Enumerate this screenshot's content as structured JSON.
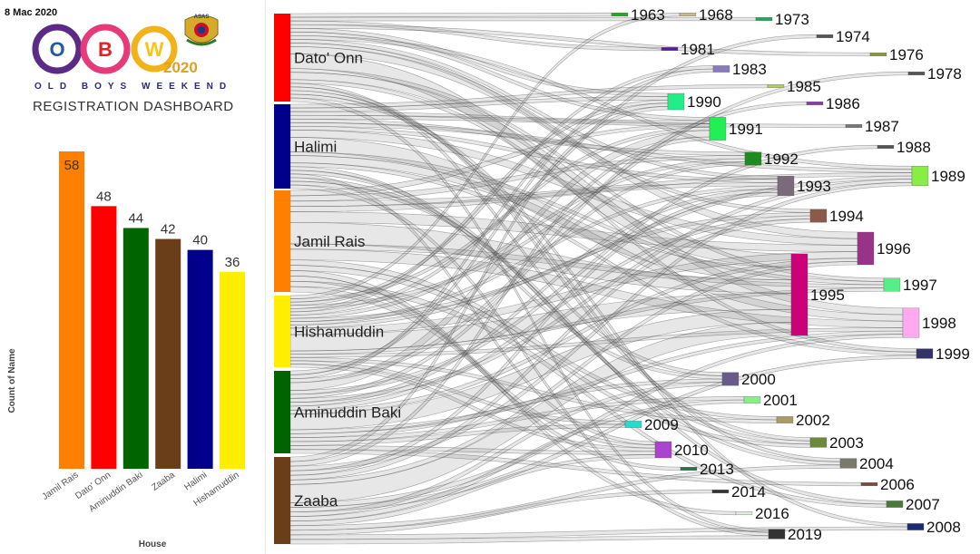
{
  "header": {
    "date": "8 Mac 2020",
    "logo_letters": [
      "O",
      "B",
      "W"
    ],
    "logo_year": "2020",
    "tagline": "OLD BOYS WEEKEND",
    "badge_text": "ASAS",
    "dashboard_title": "REGISTRATION DASHBOARD"
  },
  "colors": {
    "Jamil Rais": "#FF8000",
    "Dato' Onn": "#FF0000",
    "Aminuddin Baki": "#006400",
    "Zaaba": "#6B3E1A",
    "Halimi": "#00008B",
    "Hishamuddin": "#FFEE00"
  },
  "chart_data": [
    {
      "type": "bar",
      "categories": [
        "Jamil Rais",
        "Dato' Onn",
        "Aminuddin Baki",
        "Zaaba",
        "Halimi",
        "Hishamuddin"
      ],
      "values": [
        58,
        48,
        44,
        42,
        40,
        36
      ],
      "title": "",
      "xlabel": "House",
      "ylabel": "Count of Name",
      "ylim": [
        0,
        60
      ],
      "grid": false
    },
    {
      "type": "sankey",
      "sources": [
        "Dato' Onn",
        "Halimi",
        "Jamil Rais",
        "Hishamuddin",
        "Aminuddin Baki",
        "Zaaba"
      ],
      "targets": [
        {
          "label": "1963",
          "color": "#22AA22",
          "value": 1
        },
        {
          "label": "1968",
          "color": "#C8B88A",
          "value": 1
        },
        {
          "label": "1973",
          "color": "#22AA55",
          "value": 1
        },
        {
          "label": "1974",
          "color": "#555555",
          "value": 1
        },
        {
          "label": "1976",
          "color": "#8A9A3A",
          "value": 1
        },
        {
          "label": "1978",
          "color": "#555555",
          "value": 1
        },
        {
          "label": "1981",
          "color": "#5A1A9A",
          "value": 1
        },
        {
          "label": "1983",
          "color": "#8A7ABF",
          "value": 2
        },
        {
          "label": "1985",
          "color": "#AACF6A",
          "value": 1
        },
        {
          "label": "1986",
          "color": "#8A3AAA",
          "value": 1
        },
        {
          "label": "1987",
          "color": "#777777",
          "value": 1
        },
        {
          "label": "1988",
          "color": "#555555",
          "value": 1
        },
        {
          "label": "1989",
          "color": "#88EE44",
          "value": 6
        },
        {
          "label": "1990",
          "color": "#22EE88",
          "value": 5
        },
        {
          "label": "1991",
          "color": "#22EE55",
          "value": 7
        },
        {
          "label": "1992",
          "color": "#228822",
          "value": 4
        },
        {
          "label": "1993",
          "color": "#7A6A7A",
          "value": 6
        },
        {
          "label": "1994",
          "color": "#8A5A4A",
          "value": 4
        },
        {
          "label": "1995",
          "color": "#CC0077",
          "value": 25
        },
        {
          "label": "1996",
          "color": "#993388",
          "value": 10
        },
        {
          "label": "1997",
          "color": "#55EE88",
          "value": 4
        },
        {
          "label": "1998",
          "color": "#FFAAEE",
          "value": 9
        },
        {
          "label": "1999",
          "color": "#333366",
          "value": 3
        },
        {
          "label": "2000",
          "color": "#6A5A8A",
          "value": 4
        },
        {
          "label": "2001",
          "color": "#88EE88",
          "value": 2
        },
        {
          "label": "2002",
          "color": "#AA9A6A",
          "value": 2
        },
        {
          "label": "2003",
          "color": "#6A8A3A",
          "value": 3
        },
        {
          "label": "2004",
          "color": "#7A7A6A",
          "value": 3
        },
        {
          "label": "2006",
          "color": "#7A4A3A",
          "value": 1
        },
        {
          "label": "2007",
          "color": "#4A7A3A",
          "value": 2
        },
        {
          "label": "2008",
          "color": "#1A2A7A",
          "value": 2
        },
        {
          "label": "2009",
          "color": "#22DDCC",
          "value": 2
        },
        {
          "label": "2010",
          "color": "#AA44CC",
          "value": 5
        },
        {
          "label": "2013",
          "color": "#227744",
          "value": 1
        },
        {
          "label": "2014",
          "color": "#333333",
          "value": 1
        },
        {
          "label": "2016",
          "color": "#DDEEDD",
          "value": 1
        },
        {
          "label": "2019",
          "color": "#333333",
          "value": 3
        }
      ]
    }
  ]
}
